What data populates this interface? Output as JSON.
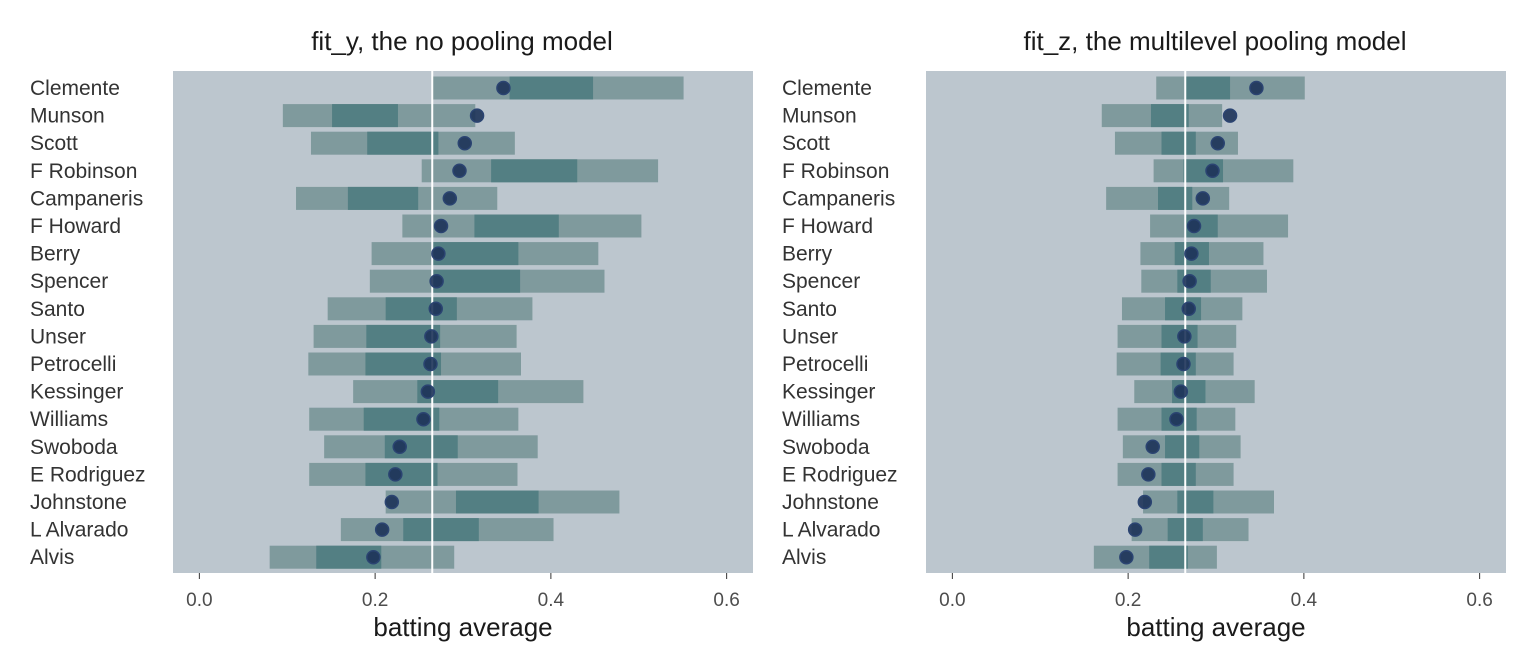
{
  "chart_data": [
    {
      "type": "interval",
      "title": "fit_y, the no pooling model",
      "xlabel": "batting average",
      "xlim": [
        -0.03,
        0.63
      ],
      "xticks": [
        0.0,
        0.2,
        0.4,
        0.6
      ],
      "xtick_labels": [
        "0.0",
        "0.2",
        "0.4",
        "0.6"
      ],
      "reference_line": 0.265,
      "players": [
        "Clemente",
        "Munson",
        "Scott",
        "F Robinson",
        "Campaneris",
        "F Howard",
        "Berry",
        "Spencer",
        "Santo",
        "Unser",
        "Petrocelli",
        "Kessinger",
        "Williams",
        "Swoboda",
        "E Rodriguez",
        "Johnstone",
        "L Alvarado",
        "Alvis"
      ],
      "observed": [
        0.346,
        0.316,
        0.302,
        0.296,
        0.285,
        0.275,
        0.272,
        0.27,
        0.269,
        0.264,
        0.263,
        0.26,
        0.255,
        0.228,
        0.223,
        0.219,
        0.208,
        0.198
      ],
      "outer_low": [
        0.265,
        0.095,
        0.127,
        0.253,
        0.11,
        0.231,
        0.196,
        0.194,
        0.146,
        0.13,
        0.124,
        0.175,
        0.125,
        0.142,
        0.125,
        0.212,
        0.161,
        0.08
      ],
      "outer_high": [
        0.551,
        0.314,
        0.359,
        0.522,
        0.339,
        0.503,
        0.454,
        0.461,
        0.379,
        0.361,
        0.366,
        0.437,
        0.363,
        0.385,
        0.362,
        0.478,
        0.403,
        0.29
      ],
      "inner_low": [
        0.353,
        0.151,
        0.191,
        0.332,
        0.169,
        0.313,
        0.264,
        0.264,
        0.212,
        0.19,
        0.189,
        0.248,
        0.187,
        0.211,
        0.189,
        0.292,
        0.232,
        0.133
      ],
      "inner_high": [
        0.448,
        0.226,
        0.272,
        0.43,
        0.249,
        0.409,
        0.363,
        0.365,
        0.293,
        0.274,
        0.275,
        0.34,
        0.273,
        0.294,
        0.271,
        0.386,
        0.318,
        0.207
      ]
    },
    {
      "type": "interval",
      "title": "fit_z, the multilevel pooling model",
      "xlabel": "batting average",
      "xlim": [
        -0.03,
        0.63
      ],
      "xticks": [
        0.0,
        0.2,
        0.4,
        0.6
      ],
      "xtick_labels": [
        "0.0",
        "0.2",
        "0.4",
        "0.6"
      ],
      "reference_line": 0.265,
      "players": [
        "Clemente",
        "Munson",
        "Scott",
        "F Robinson",
        "Campaneris",
        "F Howard",
        "Berry",
        "Spencer",
        "Santo",
        "Unser",
        "Petrocelli",
        "Kessinger",
        "Williams",
        "Swoboda",
        "E Rodriguez",
        "Johnstone",
        "L Alvarado",
        "Alvis"
      ],
      "observed": [
        0.346,
        0.316,
        0.302,
        0.296,
        0.285,
        0.275,
        0.272,
        0.27,
        0.269,
        0.264,
        0.263,
        0.26,
        0.255,
        0.228,
        0.223,
        0.219,
        0.208,
        0.198
      ],
      "outer_low": [
        0.232,
        0.17,
        0.185,
        0.229,
        0.175,
        0.225,
        0.214,
        0.215,
        0.193,
        0.188,
        0.187,
        0.207,
        0.188,
        0.194,
        0.188,
        0.217,
        0.204,
        0.161
      ],
      "outer_high": [
        0.401,
        0.307,
        0.325,
        0.388,
        0.315,
        0.382,
        0.354,
        0.358,
        0.33,
        0.323,
        0.32,
        0.344,
        0.322,
        0.328,
        0.32,
        0.366,
        0.337,
        0.301
      ],
      "inner_low": [
        0.266,
        0.226,
        0.238,
        0.263,
        0.234,
        0.264,
        0.253,
        0.256,
        0.242,
        0.238,
        0.237,
        0.25,
        0.238,
        0.242,
        0.238,
        0.256,
        0.245,
        0.224
      ],
      "inner_high": [
        0.316,
        0.269,
        0.277,
        0.308,
        0.273,
        0.302,
        0.292,
        0.294,
        0.283,
        0.279,
        0.277,
        0.288,
        0.278,
        0.281,
        0.277,
        0.297,
        0.285,
        0.268
      ]
    }
  ],
  "colors": {
    "panel_background": "#bcc6ce",
    "outer_interval": "#7f9a9d",
    "inner_interval": "#537f83",
    "point_fill": "#1d3359",
    "point_edge": "#2b4472",
    "reference_line": "#ffffff"
  }
}
